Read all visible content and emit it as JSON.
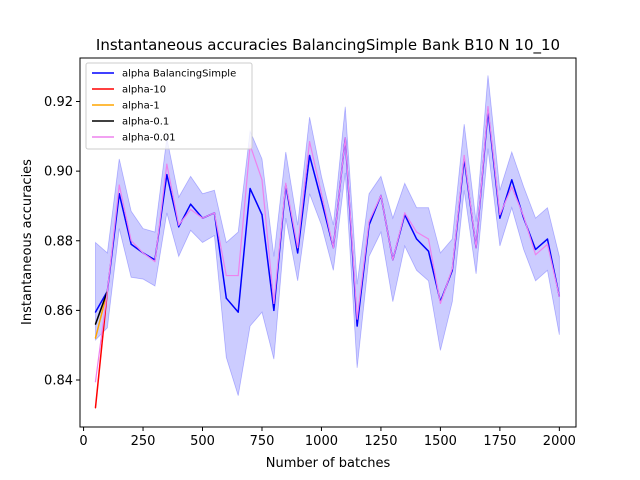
{
  "chart_data": {
    "type": "line",
    "title": "Instantaneous accuracies BalancingSimple Bank B10 N 10_10",
    "xlabel": "Number of batches",
    "ylabel": "Instantaneous accuracies",
    "xlim": [
      -15,
      2070
    ],
    "ylim": [
      0.8265,
      0.9325
    ],
    "xticks": [
      0,
      250,
      500,
      750,
      1000,
      1250,
      1500,
      1750,
      2000
    ],
    "yticks": [
      0.84,
      0.86,
      0.88,
      0.9,
      0.92
    ],
    "ytick_labels": [
      "0.84",
      "0.86",
      "0.88",
      "0.90",
      "0.92"
    ],
    "grid": false,
    "legend_position": "top-left",
    "series": [
      {
        "name": "alpha BalancingSimple",
        "color": "#0000ff",
        "band": true,
        "x": [
          50,
          100,
          150,
          200,
          250,
          300,
          350,
          400,
          450,
          500,
          550,
          600,
          650,
          700,
          750,
          800,
          850,
          900,
          950,
          1000,
          1050,
          1100,
          1150,
          1200,
          1250,
          1300,
          1350,
          1400,
          1450,
          1500,
          1550,
          1600,
          1650,
          1700,
          1750,
          1800,
          1850,
          1900,
          1950,
          2000
        ],
        "y": [
          0.8595,
          0.8655,
          0.8935,
          0.879,
          0.8765,
          0.8745,
          0.899,
          0.884,
          0.8905,
          0.8865,
          0.888,
          0.8635,
          0.8595,
          0.895,
          0.8875,
          0.86,
          0.896,
          0.8765,
          0.9045,
          0.8915,
          0.878,
          0.9095,
          0.8555,
          0.8845,
          0.893,
          0.8745,
          0.8875,
          0.8805,
          0.877,
          0.8625,
          0.8715,
          0.9035,
          0.878,
          0.9175,
          0.8865,
          0.8975,
          0.8865,
          0.8775,
          0.8805,
          0.864
        ],
        "y_low": [
          0.8515,
          0.855,
          0.8835,
          0.8695,
          0.869,
          0.867,
          0.888,
          0.8755,
          0.883,
          0.8795,
          0.8815,
          0.8465,
          0.8355,
          0.8555,
          0.8595,
          0.846,
          0.8865,
          0.8685,
          0.8935,
          0.8845,
          0.8715,
          0.8995,
          0.8435,
          0.8755,
          0.8825,
          0.8625,
          0.8785,
          0.8715,
          0.8685,
          0.8485,
          0.8625,
          0.8945,
          0.8705,
          0.9065,
          0.8785,
          0.8895,
          0.8775,
          0.8685,
          0.8715,
          0.853
        ],
        "y_high": [
          0.8795,
          0.8765,
          0.9035,
          0.8885,
          0.8835,
          0.8825,
          0.9095,
          0.8925,
          0.8985,
          0.8935,
          0.8945,
          0.8795,
          0.8825,
          0.9115,
          0.9035,
          0.8755,
          0.9055,
          0.8845,
          0.9155,
          0.8985,
          0.8845,
          0.9185,
          0.8675,
          0.8935,
          0.8985,
          0.8865,
          0.8965,
          0.8895,
          0.8895,
          0.8765,
          0.8805,
          0.9135,
          0.8855,
          0.9275,
          0.8945,
          0.9055,
          0.8955,
          0.8865,
          0.8895,
          0.8755
        ]
      },
      {
        "name": "alpha-10",
        "color": "#ff0000",
        "x": [
          50,
          100
        ],
        "y": [
          0.832,
          0.8655
        ]
      },
      {
        "name": "alpha-1",
        "color": "#ffa500",
        "x": [
          50,
          100
        ],
        "y": [
          0.852,
          0.8655
        ]
      },
      {
        "name": "alpha-0.1",
        "color": "#000000",
        "x": [
          50,
          100
        ],
        "y": [
          0.856,
          0.8655
        ]
      },
      {
        "name": "alpha-0.01",
        "color": "#ee82ee",
        "x": [
          50,
          100,
          150,
          200,
          250,
          300,
          350,
          400,
          450,
          500,
          550,
          600,
          650,
          700,
          750,
          800,
          850,
          900,
          950,
          1000,
          1050,
          1100,
          1150,
          1200,
          1250,
          1300,
          1350,
          1400,
          1450,
          1500,
          1550,
          1600,
          1650,
          1700,
          1750,
          1800,
          1850,
          1900,
          1950,
          2000
        ],
        "y": [
          0.8395,
          0.8655,
          0.896,
          0.88,
          0.8765,
          0.874,
          0.902,
          0.8845,
          0.889,
          0.8865,
          0.888,
          0.87,
          0.87,
          0.9075,
          0.8975,
          0.862,
          0.8965,
          0.878,
          0.9085,
          0.8935,
          0.878,
          0.9095,
          0.8575,
          0.8855,
          0.893,
          0.8745,
          0.888,
          0.8825,
          0.8805,
          0.862,
          0.872,
          0.9045,
          0.878,
          0.9185,
          0.8875,
          0.8955,
          0.887,
          0.876,
          0.879,
          0.864
        ]
      }
    ]
  }
}
